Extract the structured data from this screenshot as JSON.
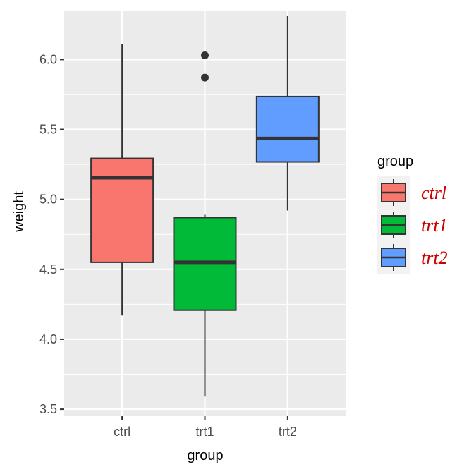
{
  "chart_data": {
    "type": "box",
    "xlabel": "group",
    "ylabel": "weight",
    "ylim": [
      3.45,
      6.35
    ],
    "yticks": [
      3.5,
      4.0,
      4.5,
      5.0,
      5.5,
      6.0
    ],
    "ytick_labels": [
      "3.5",
      "4.0",
      "4.5",
      "5.0",
      "5.5",
      "6.0"
    ],
    "categories": [
      "ctrl",
      "trt1",
      "trt2"
    ],
    "grid": true,
    "panel_background": "#ebebeb",
    "grid_color": "#ffffff",
    "box_outline_color": "#333333",
    "series": [
      {
        "name": "ctrl",
        "color": "#F8766D",
        "min": 4.17,
        "q1": 4.55,
        "median": 5.155,
        "q3": 5.293,
        "max": 6.11,
        "outliers": []
      },
      {
        "name": "trt1",
        "color": "#00BA38",
        "min": 3.59,
        "q1": 4.208,
        "median": 4.55,
        "q3": 4.87,
        "max": 4.89,
        "outliers": [
          5.87,
          6.03
        ]
      },
      {
        "name": "trt2",
        "color": "#619CFF",
        "min": 4.92,
        "q1": 5.268,
        "median": 5.435,
        "q3": 5.735,
        "max": 6.31,
        "outliers": []
      }
    ],
    "legend": {
      "title": "group",
      "position": "right",
      "label_color": "#cc0000",
      "entries": [
        "ctrl",
        "trt1",
        "trt2"
      ]
    }
  }
}
